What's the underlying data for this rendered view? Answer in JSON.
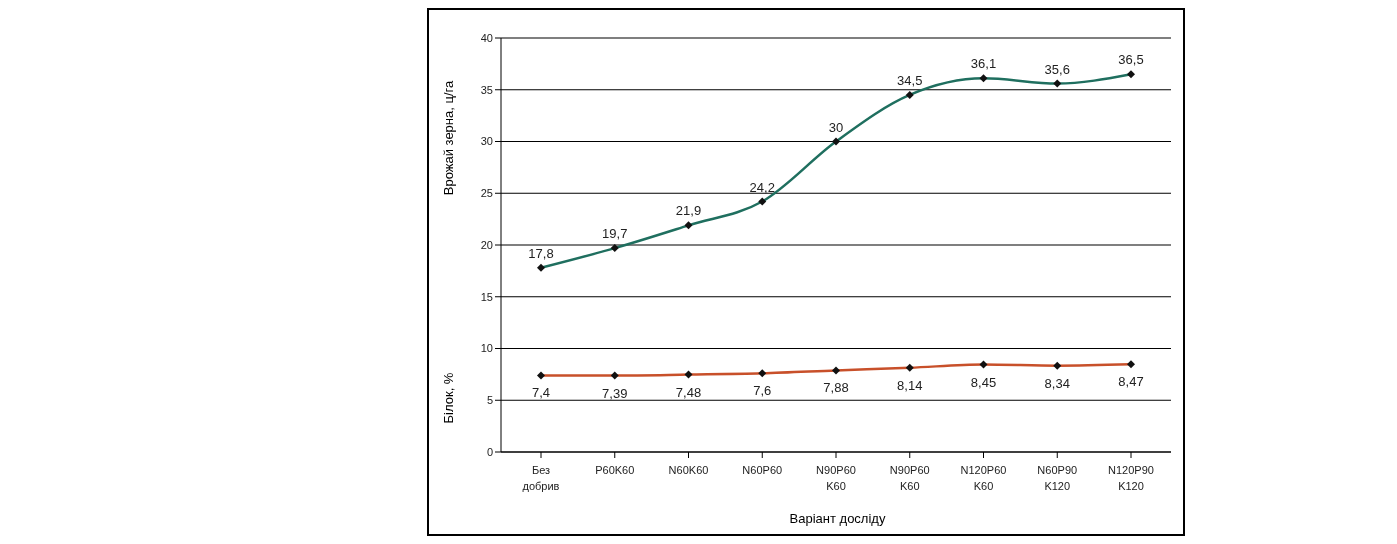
{
  "chart_data": {
    "type": "line",
    "xlabel": "Варіант досліду",
    "ylabel": "Врожай зерна, ц/га",
    "y2label": "Білок, %",
    "categories": [
      "Без добрив",
      "P60K60",
      "N60K60",
      "N60P60",
      "N90P60 K60",
      "N90P60 K60",
      "N120P60 K60",
      "N60P90 K120",
      "N120P90 K120"
    ],
    "series": [
      {
        "color": "#1f6f5f",
        "values": [
          17.8,
          19.7,
          21.9,
          24.2,
          30,
          34.5,
          36.1,
          35.6,
          36.5
        ],
        "value_labels": [
          "17,8",
          "19,7",
          "21,9",
          "24,2",
          "30",
          "34,5",
          "36,1",
          "35,6",
          "36,5"
        ]
      },
      {
        "color": "#c8502a",
        "values": [
          7.4,
          7.39,
          7.48,
          7.6,
          7.88,
          8.14,
          8.45,
          8.34,
          8.47
        ],
        "value_labels": [
          "7,4",
          "7,39",
          "7,48",
          "7,6",
          "7,88",
          "8,14",
          "8,45",
          "8,34",
          "8,47"
        ]
      }
    ],
    "ylim": [
      0,
      40
    ],
    "yticks": [
      0,
      5,
      10,
      15,
      20,
      25,
      30,
      35,
      40
    ],
    "grid": "y",
    "marker": "diamond"
  }
}
